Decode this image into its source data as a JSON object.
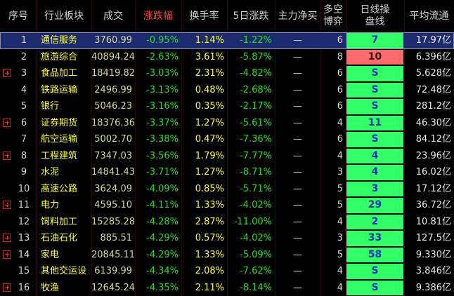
{
  "table": {
    "columns": [
      "序号",
      "行业板块",
      "成交",
      "涨跌幅",
      "换手率",
      "5日涨跌",
      "主力净买",
      "多空\n博弈",
      "日线操\n盘线",
      "平均流通"
    ],
    "rows": [
      [
        1,
        "通信服务",
        "3760.99",
        "-0.95%",
        "1.14%",
        "-1.22%",
        "—",
        "6",
        "7",
        "17.97亿"
      ],
      [
        2,
        "旅游综合",
        "40894.24",
        "-2.63%",
        "3.61%",
        "-5.87%",
        "—",
        "8",
        "10",
        "6.396亿"
      ],
      [
        3,
        "食品加工",
        "18419.82",
        "-3.03%",
        "2.31%",
        "-4.82%",
        "—",
        "6",
        "S",
        "5.628亿"
      ],
      [
        4,
        "铁路运输",
        "2496.99",
        "-3.13%",
        "0.48%",
        "-2.68%",
        "—",
        "6",
        "S",
        "72.48亿"
      ],
      [
        5,
        "银行",
        "5046.23",
        "-3.16%",
        "0.35%",
        "-2.17%",
        "—",
        "6",
        "S",
        "281.2亿"
      ],
      [
        6,
        "证券期货",
        "18376.36",
        "-3.37%",
        "1.27%",
        "-5.61%",
        "—",
        "4",
        "11",
        "46.30亿"
      ],
      [
        7,
        "航空运输",
        "5002.70",
        "-3.38%",
        "0.47%",
        "-7.36%",
        "—",
        "6",
        "S",
        "84.12亿"
      ],
      [
        8,
        "工程建筑",
        "7347.03",
        "-3.56%",
        "1.79%",
        "-7.77%",
        "—",
        "4",
        "4",
        "23.96亿"
      ],
      [
        9,
        "水泥",
        "14841.43",
        "-3.71%",
        "1.27%",
        "-8.71%",
        "—",
        "3",
        "4",
        "16.02亿"
      ],
      [
        10,
        "高速公路",
        "3624.09",
        "-4.09%",
        "0.85%",
        "-5.71%",
        "—",
        "5",
        "3",
        "17.12亿"
      ],
      [
        11,
        "电力",
        "4595.10",
        "-4.11%",
        "1.33%",
        "-4.02%",
        "—",
        "5",
        "29",
        "36.72亿"
      ],
      [
        12,
        "饲料加工",
        "15285.28",
        "-4.28%",
        "2.87%",
        "-11.00%",
        "—",
        "4",
        "2",
        "10.81亿"
      ],
      [
        13,
        "石油石化",
        "885.51",
        "-4.29%",
        "0.57%",
        "-4.02%",
        "—",
        "3",
        "33",
        "127.5亿"
      ],
      [
        14,
        "家电",
        "20845.11",
        "-4.29%",
        "1.33%",
        "-5.09%",
        "—",
        "5",
        "58",
        "9.330亿"
      ],
      [
        15,
        "其他交运设",
        "6139.99",
        "-4.34%",
        "2.08%",
        "-7.62%",
        "—",
        "4",
        "S",
        "3.846亿"
      ],
      [
        16,
        "牧渔",
        "12645.24",
        "-4.35%",
        "2.11%",
        "-8.14%",
        "—",
        "4",
        "S",
        "9.386亿"
      ]
    ],
    "expandable": [
      false,
      false,
      true,
      false,
      false,
      true,
      false,
      true,
      false,
      false,
      true,
      false,
      true,
      true,
      false,
      true
    ],
    "highlighted_signal": [
      false,
      true,
      false,
      false,
      false,
      false,
      false,
      false,
      false,
      false,
      false,
      false,
      false,
      false,
      false,
      false
    ],
    "selected_row": 0
  }
}
